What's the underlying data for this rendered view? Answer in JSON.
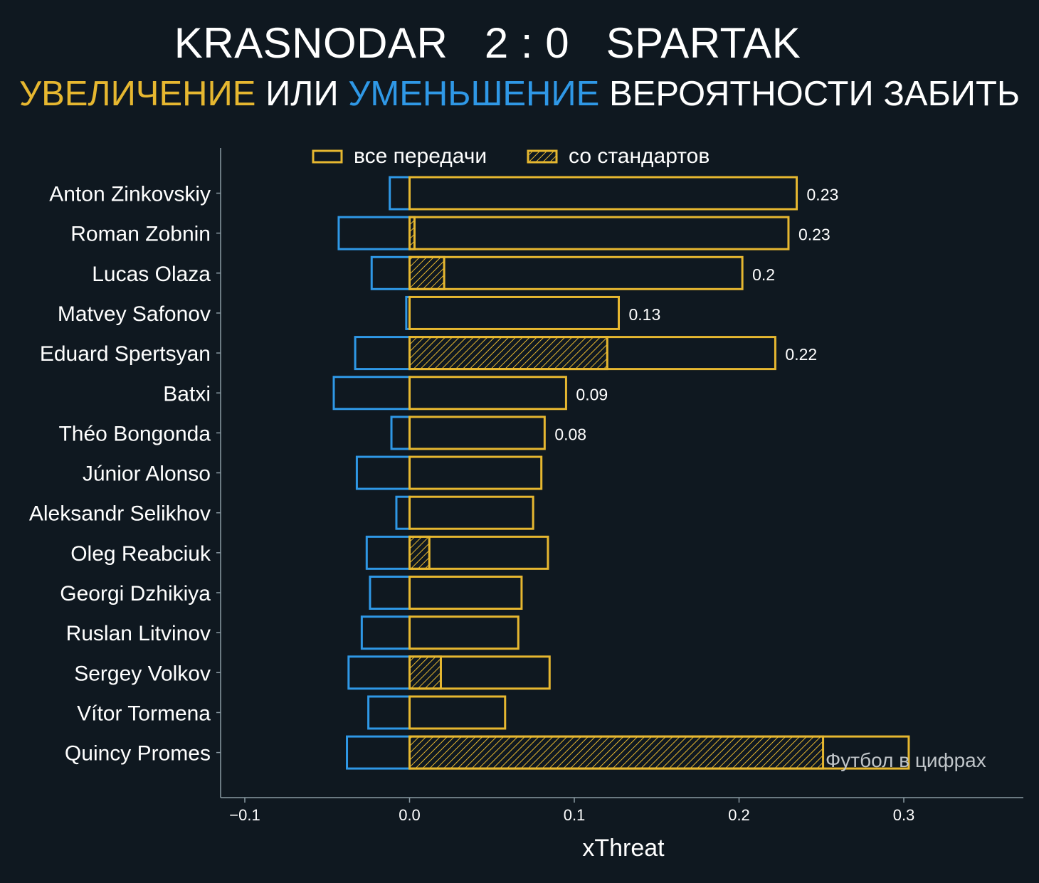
{
  "header": {
    "home": "KRASNODAR",
    "score": "2 : 0",
    "away": "SPARTAK"
  },
  "subtitle": {
    "increase": "УВЕЛИЧЕНИЕ",
    "or": "ИЛИ",
    "decrease": "УМЕНЬШЕНИЕ",
    "rest": "ВЕРОЯТНОСТИ ЗАБИТЬ"
  },
  "colors": {
    "background": "#0f1820",
    "positive": "#e6b730",
    "negative": "#2f98e6",
    "axis": "#8a9aa3"
  },
  "watermark": "Футбол в цифрах",
  "chart_data": {
    "type": "bar",
    "orientation": "horizontal",
    "xlabel": "xThreat",
    "xlim": [
      -0.1,
      0.36
    ],
    "xticks": [
      -0.1,
      0.0,
      0.1,
      0.2,
      0.3
    ],
    "xtick_labels": [
      "−0.1",
      "0.0",
      "0.1",
      "0.2",
      "0.3"
    ],
    "legend": {
      "position": "top-center",
      "entries": [
        "все передачи",
        "со стандартов"
      ]
    },
    "categories": [
      "Anton Zinkovskiy",
      "Roman Zobnin",
      "Lucas Olaza",
      "Matvey Safonov",
      "Eduard Spertsyan",
      "Batxi",
      "Théo Bongonda",
      "Júnior Alonso",
      "Aleksandr Selikhov",
      "Oleg Reabciuk",
      "Georgi Dzhikiya",
      "Ruslan Litvinov",
      "Sergey Volkov",
      "Vítor Tormena",
      "Quincy Promes"
    ],
    "series": [
      {
        "name": "все передачи (увеличение)",
        "values": [
          0.235,
          0.23,
          0.202,
          0.127,
          0.222,
          0.095,
          0.082,
          0.08,
          0.075,
          0.084,
          0.068,
          0.066,
          0.085,
          0.058,
          0.303
        ]
      },
      {
        "name": "все передачи (уменьшение)",
        "values": [
          -0.012,
          -0.043,
          -0.023,
          -0.002,
          -0.033,
          -0.046,
          -0.011,
          -0.032,
          -0.008,
          -0.026,
          -0.024,
          -0.029,
          -0.037,
          -0.025,
          -0.038
        ]
      },
      {
        "name": "со стандартов",
        "values": [
          0.0,
          0.003,
          0.021,
          0.0,
          0.12,
          0.0,
          0.0,
          0.0,
          0.0,
          0.012,
          0.0,
          0.0,
          0.019,
          0.0,
          0.251
        ]
      }
    ],
    "data_labels": [
      "0.23",
      "0.23",
      "0.2",
      "0.13",
      "0.22",
      "0.09",
      "0.08",
      "",
      "",
      "",
      "",
      "",
      "",
      "",
      ""
    ]
  }
}
